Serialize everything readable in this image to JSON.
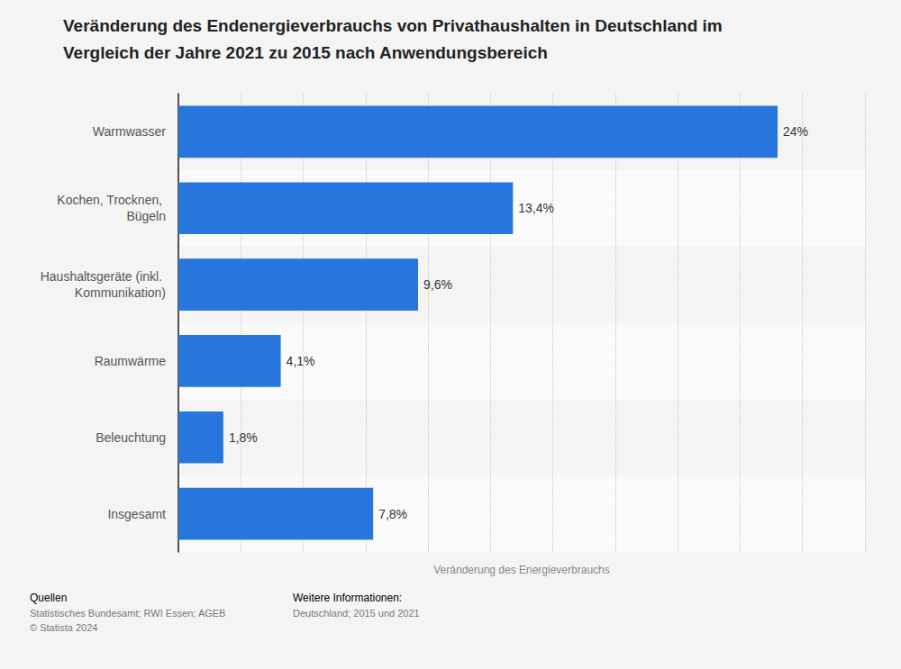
{
  "chart_data": {
    "type": "bar",
    "title": "Veränderung des Endenergieverbrauchs von Privathaushalten in Deutschland im Vergleich der Jahre 2021 zu 2015 nach Anwendungsbereich",
    "x_label": "Veränderung des Energieverbrauchs",
    "categories": [
      "Warmwasser",
      "Kochen, Trocknen, Bügeln",
      "Haushaltsgeräte (inkl. Kommunikation)",
      "Raumwärme",
      "Beleuchtung",
      "Insgesamt"
    ],
    "values": [
      24,
      13.4,
      9.6,
      4.1,
      1.8,
      7.8
    ],
    "value_labels": [
      "24%",
      "13,4%",
      "9,6%",
      "4,1%",
      "1,8%",
      "7,8%"
    ],
    "color": "#2776dd",
    "orientation": "horizontal",
    "data_labels": true,
    "tick_labels": "y",
    "grid": true,
    "xlim": [
      0,
      27.5
    ],
    "xticks": [
      0,
      2.5,
      5,
      7.5,
      10,
      12.5,
      15,
      17.5,
      20,
      22.5,
      25,
      27.5
    ],
    "annotations": [
      {
        "heading": "Quellen",
        "lines": [
          "Statistisches Bundesamt; RWI Essen; AGEB",
          "© Statista 2024"
        ]
      },
      {
        "heading": "Weitere Informationen:",
        "lines": [
          "Deutschland; 2015 und 2021"
        ]
      }
    ]
  }
}
